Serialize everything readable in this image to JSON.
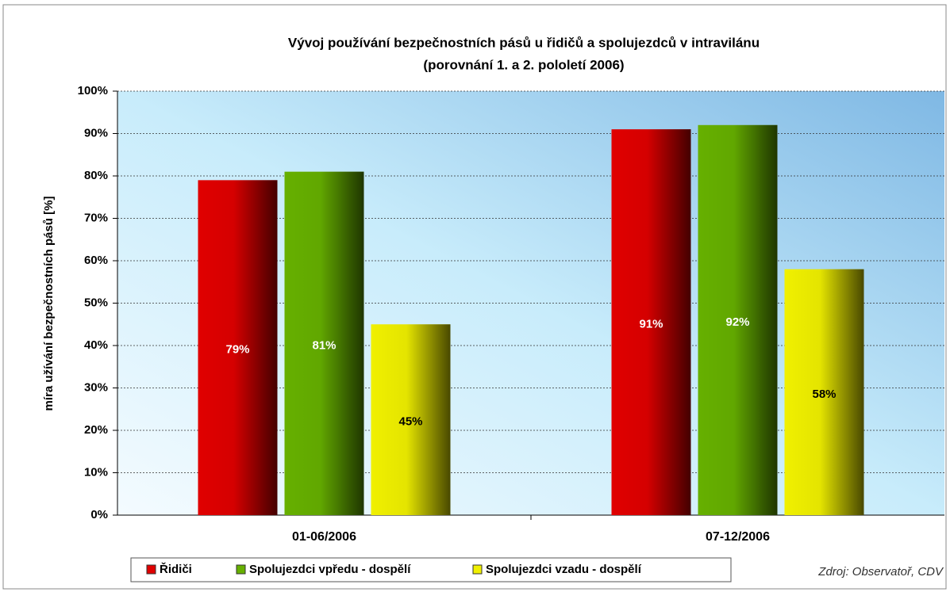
{
  "chart_data": {
    "type": "bar",
    "title": [
      "Vývoj používání bezpečnostních pásů u řidičů a spolujezdců v intravilánu",
      "(porovnání 1. a 2. pololetí 2006)"
    ],
    "y_label": "míra užívání bezpečnostních pásů [%]",
    "source": "Zdroj: Observatoř, CDV",
    "categories": [
      "01-06/2006",
      "07-12/2006"
    ],
    "series": [
      {
        "name": "Řidiči",
        "color": "#e00000",
        "values": [
          79,
          91
        ],
        "value_labels": [
          "79%",
          "91%"
        ]
      },
      {
        "name": "Spolujezdci vpředu - dospělí",
        "color": "#66b000",
        "values": [
          81,
          92
        ],
        "value_labels": [
          "81%",
          "92%"
        ]
      },
      {
        "name": "Spolujezdci vzadu - dospělí",
        "color": "#f0f000",
        "values": [
          45,
          58
        ],
        "value_labels": [
          "45%",
          "58%"
        ]
      }
    ],
    "ylim": [
      0,
      100
    ],
    "yticks": [
      {
        "value": 0,
        "label": "0%"
      },
      {
        "value": 10,
        "label": "10%"
      },
      {
        "value": 20,
        "label": "20%"
      },
      {
        "value": 30,
        "label": "30%"
      },
      {
        "value": 40,
        "label": "40%"
      },
      {
        "value": 50,
        "label": "50%"
      },
      {
        "value": 60,
        "label": "60%"
      },
      {
        "value": 70,
        "label": "70%"
      },
      {
        "value": 80,
        "label": "80%"
      },
      {
        "value": 90,
        "label": "90%"
      },
      {
        "value": 100,
        "label": "100%"
      }
    ],
    "grid": true
  }
}
